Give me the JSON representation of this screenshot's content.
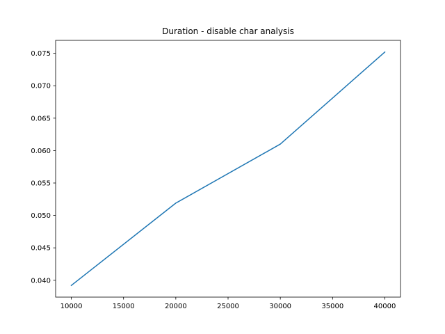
{
  "chart_data": {
    "type": "line",
    "title": "Duration - disable char analysis",
    "xlabel": "",
    "ylabel": "",
    "x": [
      10000,
      20000,
      30000,
      40000
    ],
    "series": [
      {
        "values": [
          0.0392,
          0.0519,
          0.061,
          0.0752
        ],
        "color": "#1f77b4"
      }
    ],
    "xlim": [
      8500,
      41500
    ],
    "ylim": [
      0.0374,
      0.077
    ],
    "xticks": [
      10000,
      15000,
      20000,
      25000,
      30000,
      35000,
      40000
    ],
    "xtick_labels": [
      "10000",
      "15000",
      "20000",
      "25000",
      "30000",
      "35000",
      "40000"
    ],
    "yticks": [
      0.04,
      0.045,
      0.05,
      0.055,
      0.06,
      0.065,
      0.07,
      0.075
    ],
    "ytick_labels": [
      "0.040",
      "0.045",
      "0.050",
      "0.055",
      "0.060",
      "0.065",
      "0.070",
      "0.075"
    ],
    "grid": false,
    "legend": "none"
  }
}
